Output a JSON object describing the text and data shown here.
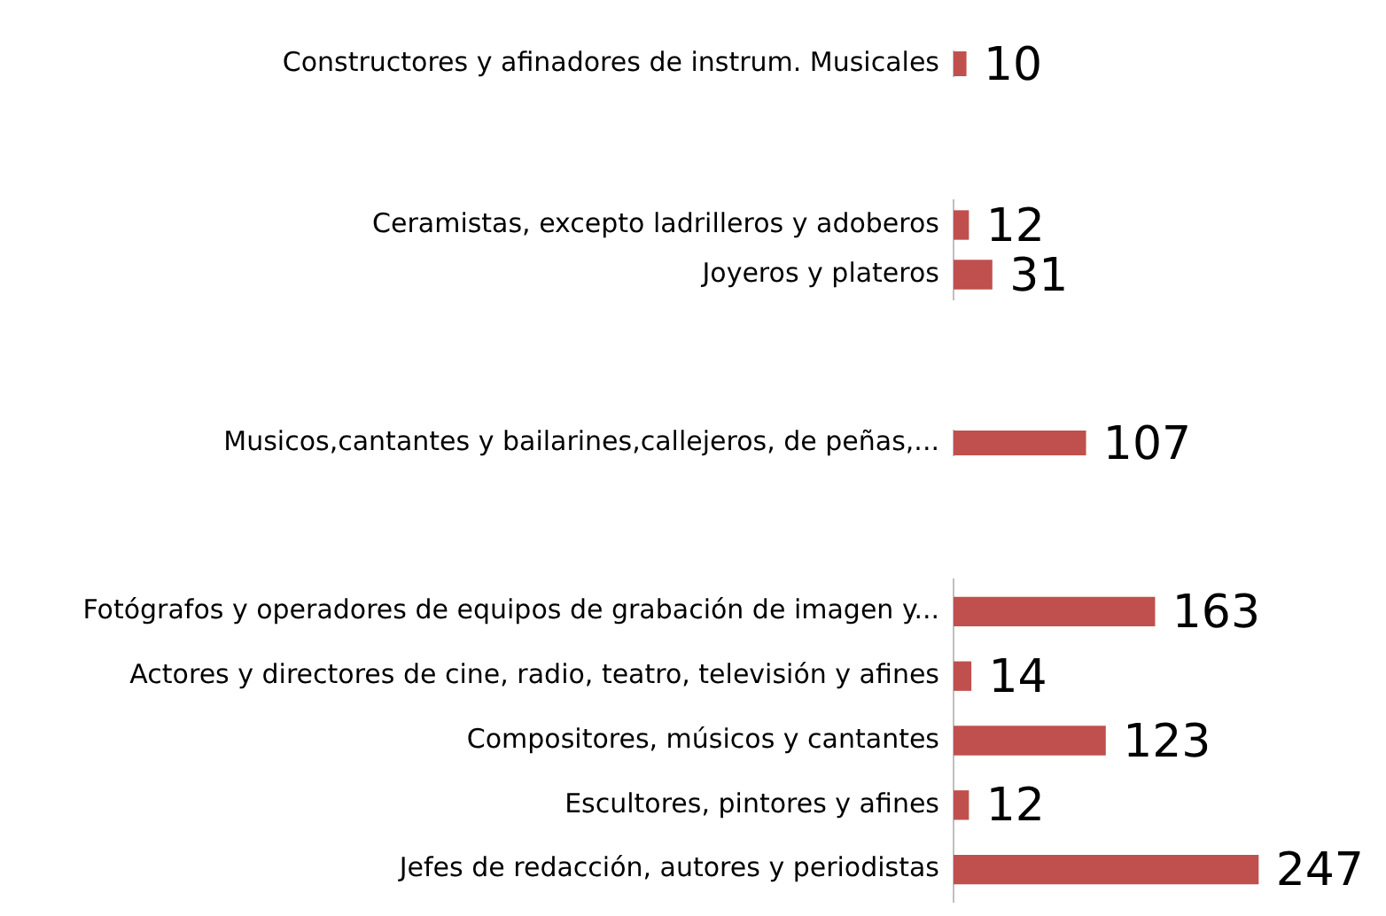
{
  "chart_data": [
    {
      "type": "bar",
      "orientation": "horizontal",
      "categories": [
        "Constructores y afinadores de instrum. Musicales"
      ],
      "values": [
        10
      ],
      "color": "#c0504d",
      "data_labels": true,
      "tick_labels": "y"
    },
    {
      "type": "bar",
      "orientation": "horizontal",
      "categories": [
        "Ceramistas, excepto ladrilleros y adoberos",
        "Joyeros y plateros"
      ],
      "values": [
        12,
        31
      ],
      "color": "#c0504d",
      "data_labels": true,
      "tick_labels": "y"
    },
    {
      "type": "bar",
      "orientation": "horizontal",
      "categories": [
        "Musicos,cantantes y bailarines,callejeros, de peñas,..."
      ],
      "values": [
        107
      ],
      "color": "#c0504d",
      "data_labels": true,
      "tick_labels": "y"
    },
    {
      "type": "bar",
      "orientation": "horizontal",
      "categories": [
        "Fotógrafos y operadores de equipos de grabación de imagen y...",
        "Actores y directores de cine, radio, teatro, televisión y afines",
        "Compositores, músicos y cantantes",
        "Escultores, pintores y afines",
        "Jefes de redacción, autores y periodistas"
      ],
      "values": [
        163,
        14,
        123,
        12,
        247
      ],
      "color": "#c0504d",
      "data_labels": true,
      "tick_labels": "y"
    }
  ]
}
